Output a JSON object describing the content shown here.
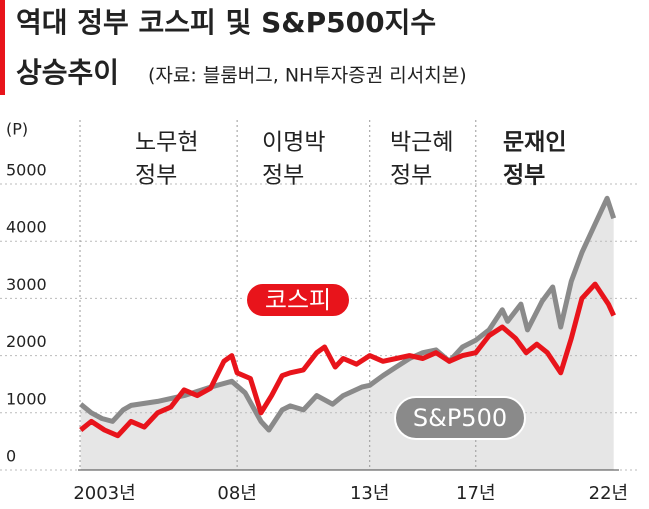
{
  "chart_data": {
    "type": "line",
    "title": "역대 정부 코스피 및 S&P500지수",
    "subtitle": "상승추이",
    "source": "(자료: 블룸버그, NH투자증권 리서치본)",
    "y_label": "(P)",
    "ylim": [
      0,
      5000
    ],
    "yticks": [
      0,
      1000,
      2000,
      3000,
      4000,
      5000
    ],
    "xlim": [
      2002,
      2022.4
    ],
    "xticks": [
      {
        "value": 2003,
        "label": "2003년"
      },
      {
        "value": 2008,
        "label": "08년"
      },
      {
        "value": 2013,
        "label": "13년"
      },
      {
        "value": 2017,
        "label": "17년"
      },
      {
        "value": 2022,
        "label": "22년"
      }
    ],
    "grid": true,
    "governments": [
      [
        "노무현",
        "정부"
      ],
      [
        "이명박",
        "정부"
      ],
      [
        "박근혜",
        "정부"
      ],
      [
        "문재인",
        "정부"
      ]
    ],
    "series": [
      {
        "name": "S&P500",
        "color": "#8a8a8a",
        "fill": "#e6e6e6",
        "x": [
          2002.1,
          2002.5,
          2002.9,
          2003.3,
          2003.7,
          2004,
          2005,
          2006,
          2007,
          2007.8,
          2008.3,
          2008.9,
          2009.2,
          2009.7,
          2010,
          2010.5,
          2011,
          2011.6,
          2012,
          2012.7,
          2013,
          2013.5,
          2014,
          2014.5,
          2015,
          2015.5,
          2016,
          2016.5,
          2017,
          2017.5,
          2018,
          2018.2,
          2018.7,
          2018.95,
          2019.5,
          2019.9,
          2020.2,
          2020.6,
          2021,
          2021.5,
          2021.95,
          2022.2
        ],
        "values": [
          1150,
          1000,
          900,
          850,
          1050,
          1130,
          1200,
          1300,
          1450,
          1550,
          1350,
          850,
          700,
          1050,
          1120,
          1050,
          1300,
          1150,
          1300,
          1450,
          1480,
          1650,
          1800,
          1950,
          2050,
          2100,
          1900,
          2150,
          2270,
          2450,
          2800,
          2600,
          2900,
          2450,
          2950,
          3200,
          2500,
          3300,
          3800,
          4300,
          4750,
          4400
        ]
      },
      {
        "name": "코스피",
        "color": "#e8141b",
        "x": [
          2002.1,
          2002.5,
          2003,
          2003.5,
          2004,
          2004.5,
          2005,
          2005.5,
          2006,
          2006.5,
          2007,
          2007.5,
          2007.8,
          2008,
          2008.5,
          2008.9,
          2009.3,
          2009.7,
          2010,
          2010.5,
          2011,
          2011.3,
          2011.7,
          2012,
          2012.5,
          2013,
          2013.5,
          2014,
          2014.5,
          2015,
          2015.5,
          2016,
          2016.5,
          2017,
          2017.5,
          2018,
          2018.5,
          2018.9,
          2019.3,
          2019.7,
          2020.2,
          2020.6,
          2021,
          2021.5,
          2022,
          2022.2
        ],
        "values": [
          700,
          850,
          700,
          600,
          850,
          750,
          1000,
          1100,
          1400,
          1300,
          1430,
          1900,
          2000,
          1700,
          1600,
          1000,
          1300,
          1650,
          1700,
          1750,
          2050,
          2150,
          1800,
          1950,
          1850,
          2000,
          1900,
          1950,
          2000,
          1950,
          2050,
          1900,
          2000,
          2050,
          2350,
          2500,
          2300,
          2050,
          2200,
          2050,
          1700,
          2300,
          3000,
          3250,
          2900,
          2700
        ]
      }
    ]
  }
}
